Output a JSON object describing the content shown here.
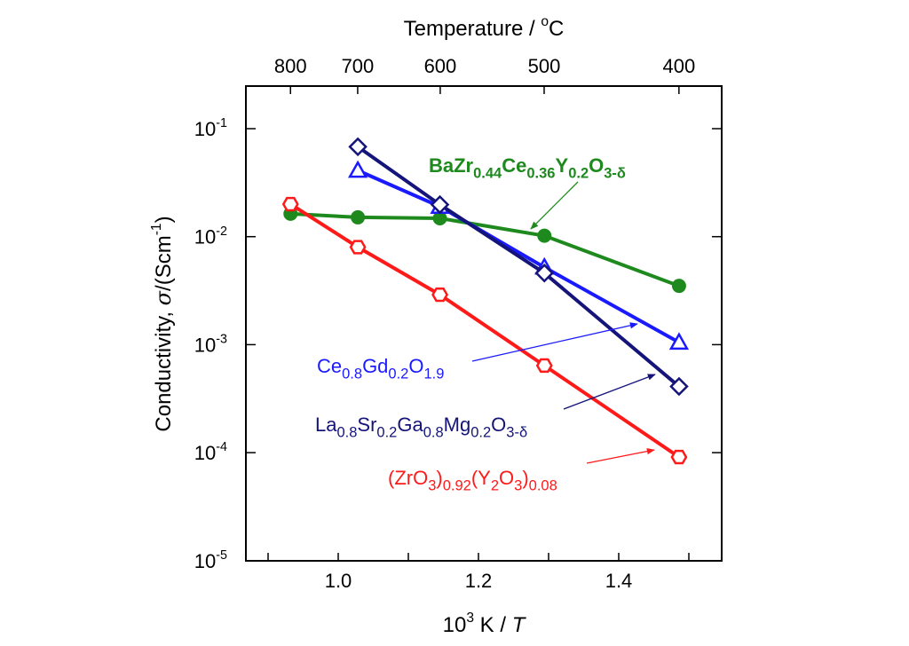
{
  "chart_data": {
    "type": "line",
    "title": "",
    "xlabel": "10^3 K / T",
    "xlabel_parts": [
      [
        "10",
        ""
      ],
      [
        "3",
        "sup"
      ],
      [
        " K / ",
        ""
      ],
      [
        "T",
        "italic"
      ]
    ],
    "ylabel_parts": [
      [
        "Conductivity, ",
        ""
      ],
      [
        "σ",
        "greek"
      ],
      [
        "/(Scm",
        ""
      ],
      [
        "-1",
        "sup"
      ],
      [
        ")",
        ""
      ]
    ],
    "top_xlabel_parts": [
      [
        "Temperature / ",
        ""
      ],
      [
        "o",
        "sup"
      ],
      [
        "C",
        ""
      ]
    ],
    "xlim": [
      0.868,
      1.547
    ],
    "ylim": [
      1e-05,
      0.25
    ],
    "yscale": "log",
    "x_ticks": [
      {
        "v": 1.0,
        "label": "1.0"
      },
      {
        "v": 1.2,
        "label": "1.2"
      },
      {
        "v": 1.4,
        "label": "1.4"
      }
    ],
    "y_ticks": [
      {
        "exp": -1,
        "base": "10",
        "sup": "-1"
      },
      {
        "exp": -2,
        "base": "10",
        "sup": "-2"
      },
      {
        "exp": -3,
        "base": "10",
        "sup": "-3"
      },
      {
        "exp": -4,
        "base": "10",
        "sup": "-4"
      },
      {
        "exp": -5,
        "base": "10",
        "sup": "-5"
      }
    ],
    "top_ticks": [
      {
        "t": 800,
        "label": "800"
      },
      {
        "t": 700,
        "label": "700"
      },
      {
        "t": 600,
        "label": "600"
      },
      {
        "t": 500,
        "label": "500"
      },
      {
        "t": 400,
        "label": "400"
      }
    ],
    "series": [
      {
        "name": "BaZr0.44Ce0.36Y0.2O3-δ",
        "color": "#1e8a1e",
        "marker": "circle-filled",
        "label_parts": [
          [
            "BaZr",
            ""
          ],
          [
            "0.44",
            "sub"
          ],
          [
            "Ce",
            ""
          ],
          [
            "0.36",
            "sub"
          ],
          [
            "Y",
            ""
          ],
          [
            "0.2",
            "sub"
          ],
          [
            "O",
            ""
          ],
          [
            "3-δ",
            "sub"
          ]
        ],
        "x": [
          0.932,
          1.028,
          1.145,
          1.294,
          1.486
        ],
        "y": [
          0.0163,
          0.0151,
          0.0148,
          0.0102,
          0.0035
        ]
      },
      {
        "name": "Ce0.8Gd0.2O1.9",
        "color": "#1a1aff",
        "marker": "triangle-open",
        "label_parts": [
          [
            "Ce",
            ""
          ],
          [
            "0.8",
            "sub"
          ],
          [
            "Gd",
            ""
          ],
          [
            "0.2",
            "sub"
          ],
          [
            "O",
            ""
          ],
          [
            "1.9",
            "sub"
          ]
        ],
        "x": [
          1.028,
          1.145,
          1.294,
          1.486
        ],
        "y": [
          0.041,
          0.019,
          0.0052,
          0.00105
        ]
      },
      {
        "name": "La0.8Sr0.2Ga0.8Mg0.2O3-δ",
        "color": "#14147a",
        "marker": "diamond-open",
        "label_parts": [
          [
            "La",
            ""
          ],
          [
            "0.8",
            "sub"
          ],
          [
            "Sr",
            ""
          ],
          [
            "0.2",
            "sub"
          ],
          [
            "Ga",
            ""
          ],
          [
            "0.8",
            "sub"
          ],
          [
            "Mg",
            ""
          ],
          [
            "0.2",
            "sub"
          ],
          [
            "O",
            ""
          ],
          [
            "3-δ",
            "sub"
          ]
        ],
        "x": [
          1.028,
          1.145,
          1.294,
          1.486
        ],
        "y": [
          0.068,
          0.0198,
          0.0046,
          0.00041
        ]
      },
      {
        "name": "(ZrO3)0.92(Y2O3)0.08",
        "color": "#ff1a1a",
        "marker": "hexagon-open",
        "label_parts": [
          [
            "(ZrO",
            ""
          ],
          [
            "3",
            "sub"
          ],
          [
            ")",
            ""
          ],
          [
            "0.92",
            "sub"
          ],
          [
            "(Y",
            ""
          ],
          [
            "2",
            "sub"
          ],
          [
            "O",
            ""
          ],
          [
            "3",
            "sub"
          ],
          [
            ")",
            ""
          ],
          [
            "0.08",
            "sub"
          ]
        ],
        "x": [
          0.932,
          1.028,
          1.145,
          1.294,
          1.486
        ],
        "y": [
          0.02,
          0.008,
          0.0029,
          0.00064,
          9.1e-05
        ]
      }
    ],
    "grid": false,
    "legend": "inline annotations with arrows"
  }
}
